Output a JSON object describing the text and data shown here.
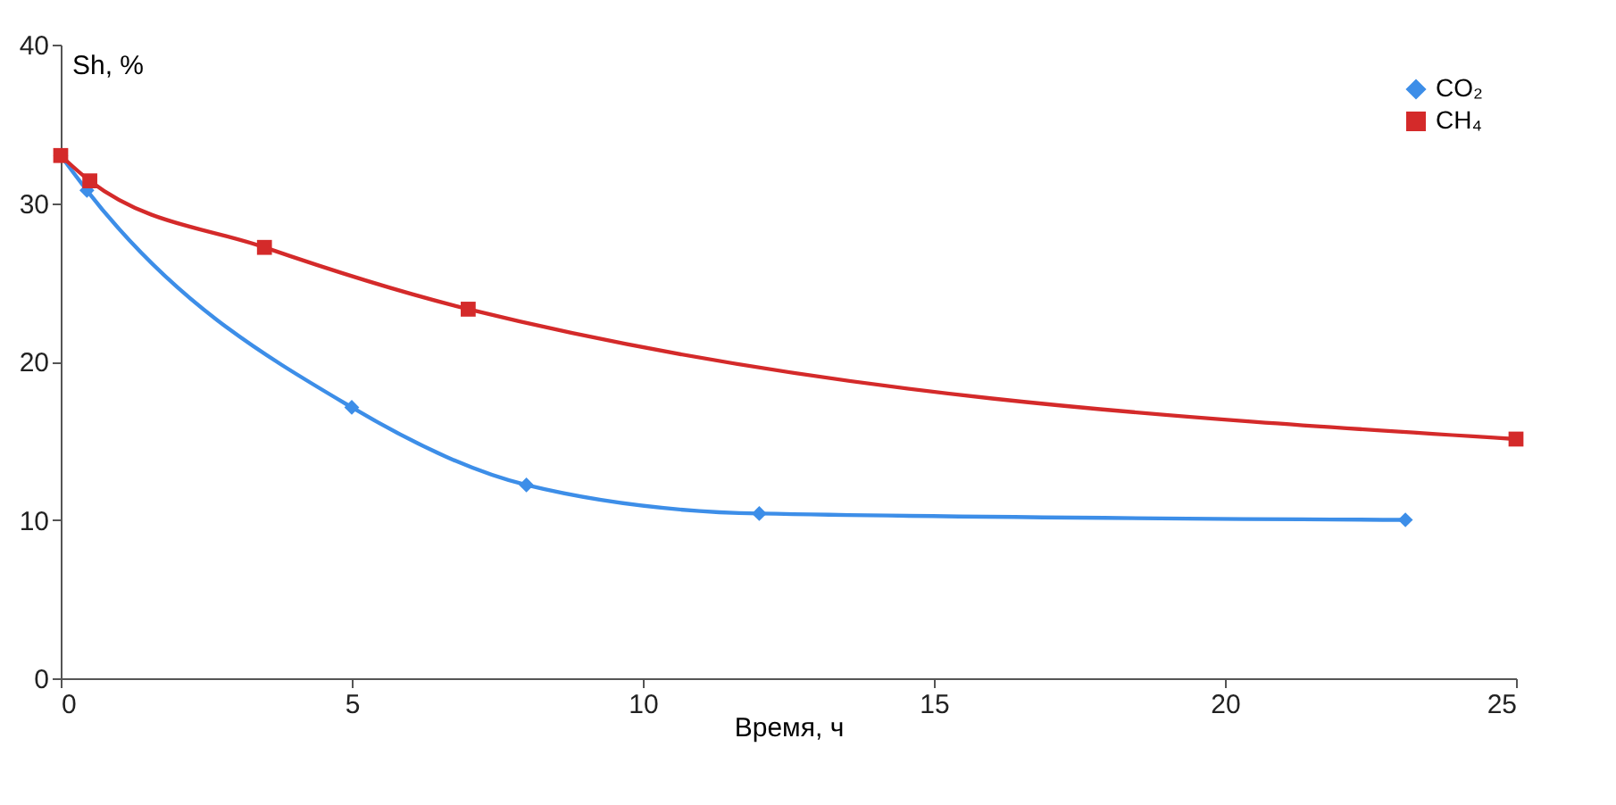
{
  "chart_data": {
    "type": "line",
    "xlabel": "Время, ч",
    "ylabel": "Sh, %",
    "xlim": [
      0,
      25
    ],
    "xticks": [
      0,
      5,
      10,
      15,
      20,
      25
    ],
    "ylim": [
      0,
      40
    ],
    "yticks": [
      0,
      10,
      20,
      30,
      40
    ],
    "grid": false,
    "legend": "top right",
    "line_style": "solid",
    "series": [
      {
        "name": "CO₂",
        "color": "#3d8ee8",
        "marker": "diamond",
        "x": [
          0,
          0.45,
          5,
          8,
          12,
          23.1
        ],
        "values": [
          33,
          30.8,
          17.1,
          12.2,
          10.4,
          10
        ]
      },
      {
        "name": "CH₄",
        "color": "#d42a2a",
        "marker": "square",
        "x": [
          0,
          0.5,
          3.5,
          7,
          25
        ],
        "values": [
          33,
          31.4,
          27.2,
          23.3,
          15.1
        ]
      }
    ]
  }
}
